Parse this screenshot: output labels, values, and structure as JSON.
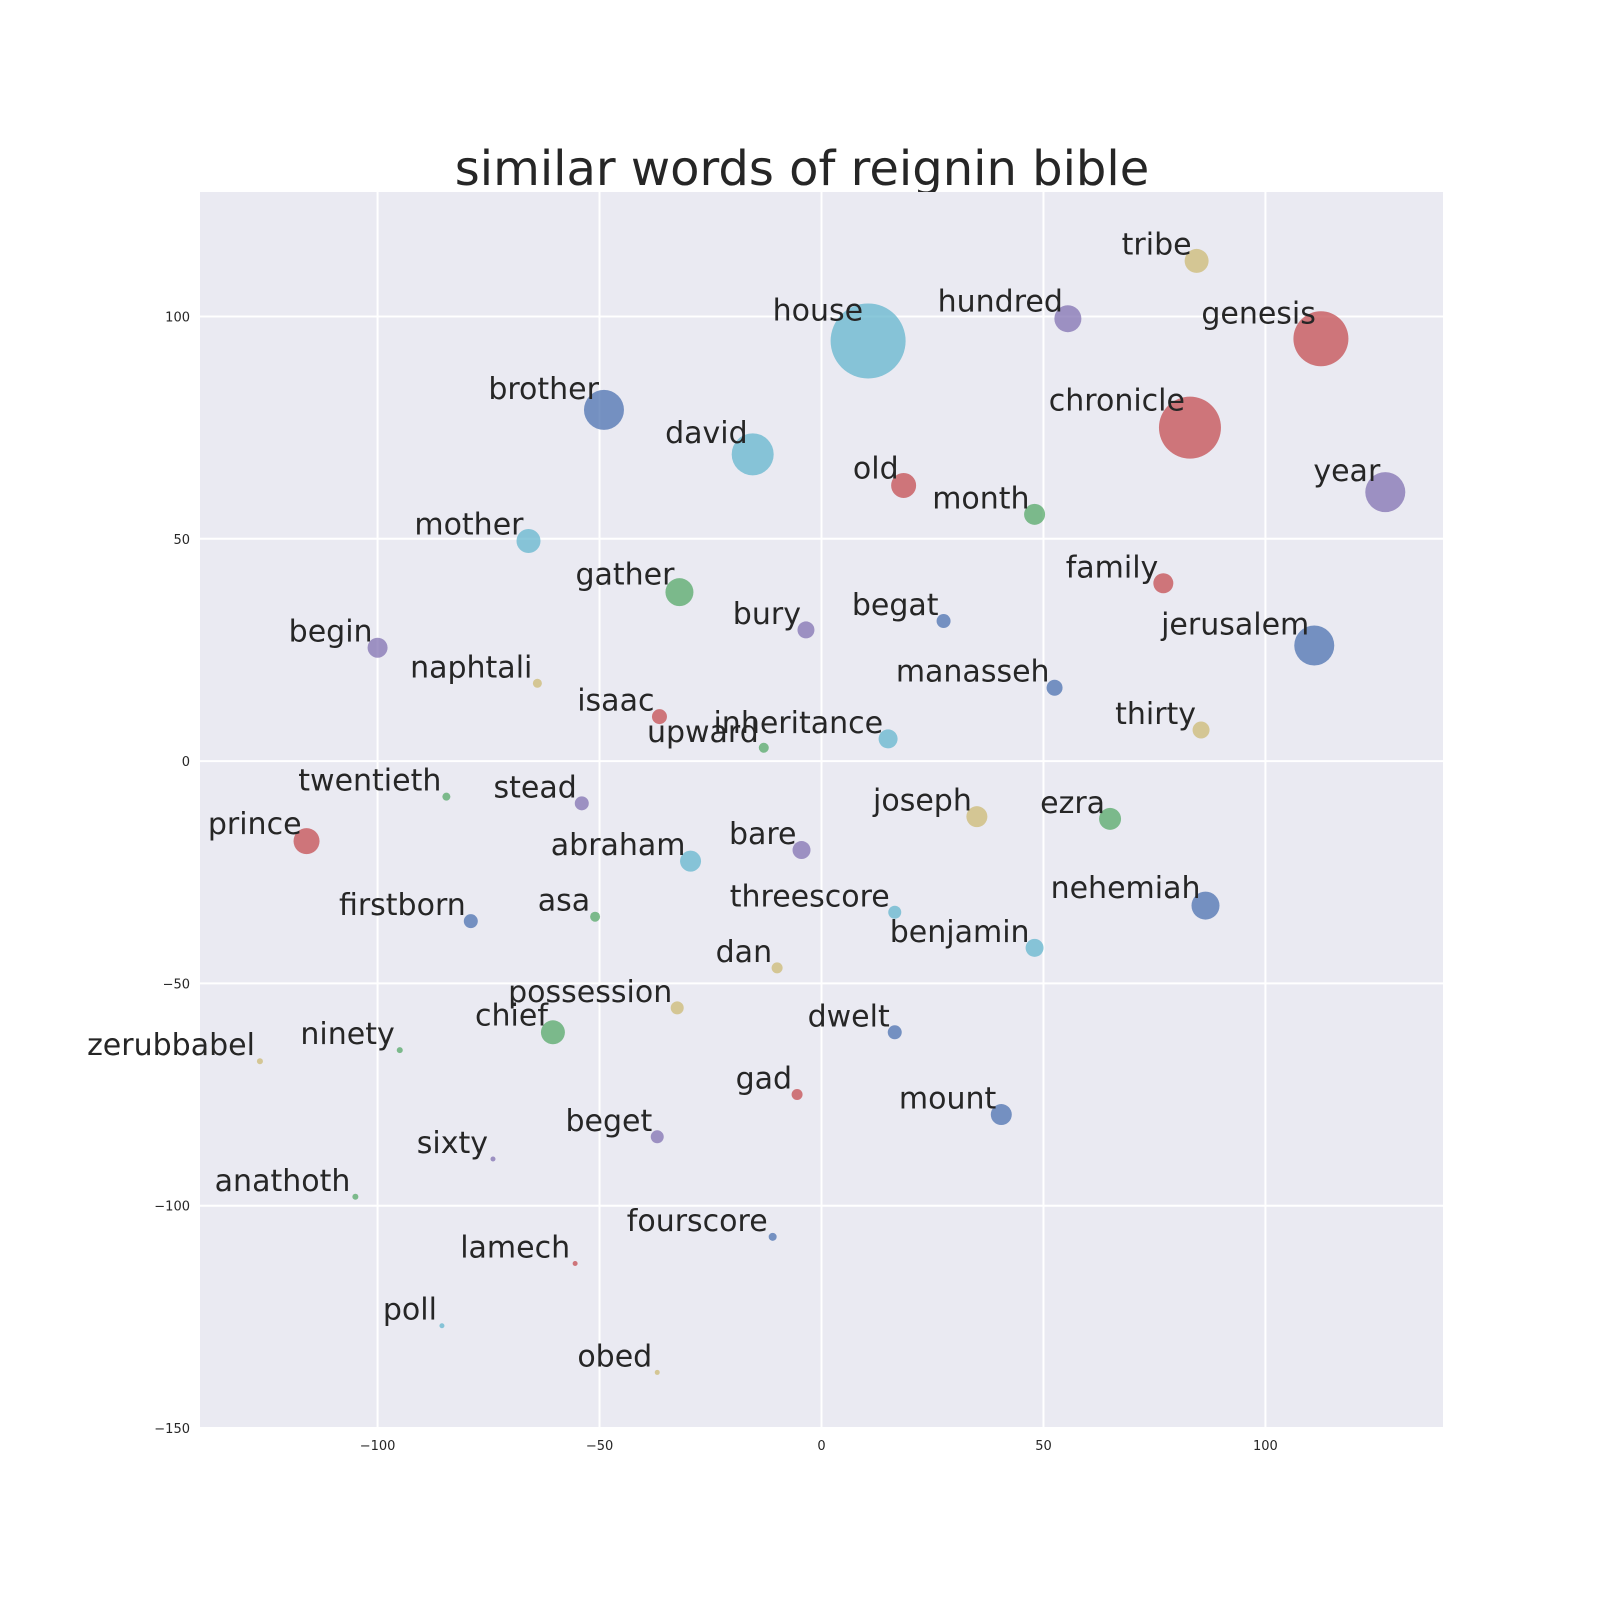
{
  "chart_data": {
    "type": "scatter",
    "title": "similar words of reignin bible",
    "xlabel": "",
    "ylabel": "",
    "xlim": [
      -140,
      140
    ],
    "ylim": [
      -150,
      128
    ],
    "xticks": [
      -100,
      -50,
      0,
      50,
      100
    ],
    "yticks": [
      100,
      50,
      0,
      -50,
      -100,
      -150
    ],
    "xtick_labels": [
      "−100",
      "−50",
      "0",
      "50",
      "100"
    ],
    "ytick_labels": [
      "100",
      "50",
      "0",
      "−50",
      "−100",
      "−150"
    ],
    "grid": true,
    "palette": {
      "blue": "#4c72b0",
      "green": "#55a868",
      "red": "#c44e52",
      "purple": "#8172b2",
      "tan": "#ccb974",
      "cyan": "#64b5cd",
      "background": "#eaeaf2"
    },
    "points": [
      {
        "label": "tribe",
        "x": 84.5,
        "y": 112.5,
        "size": 24,
        "color": "tan"
      },
      {
        "label": "hundred",
        "x": 55.5,
        "y": 99.5,
        "size": 27,
        "color": "purple"
      },
      {
        "label": "house",
        "x": 10.5,
        "y": 94.5,
        "size": 75,
        "color": "cyan"
      },
      {
        "label": "genesis",
        "x": 112.5,
        "y": 95,
        "size": 55,
        "color": "red"
      },
      {
        "label": "brother",
        "x": -49,
        "y": 79,
        "size": 40,
        "color": "blue"
      },
      {
        "label": "chronicle",
        "x": 83,
        "y": 75,
        "size": 62,
        "color": "red"
      },
      {
        "label": "david",
        "x": -15.5,
        "y": 69,
        "size": 42,
        "color": "cyan"
      },
      {
        "label": "old",
        "x": 18.5,
        "y": 62,
        "size": 25,
        "color": "red"
      },
      {
        "label": "year",
        "x": 127,
        "y": 60.5,
        "size": 40,
        "color": "purple"
      },
      {
        "label": "month",
        "x": 48,
        "y": 55.5,
        "size": 21,
        "color": "green"
      },
      {
        "label": "mother",
        "x": -66,
        "y": 49.5,
        "size": 24,
        "color": "cyan"
      },
      {
        "label": "family",
        "x": 77,
        "y": 40,
        "size": 20,
        "color": "red"
      },
      {
        "label": "gather",
        "x": -32,
        "y": 38,
        "size": 28,
        "color": "green"
      },
      {
        "label": "bury",
        "x": -3.5,
        "y": 29.5,
        "size": 17,
        "color": "purple"
      },
      {
        "label": "begat",
        "x": 27.5,
        "y": 31.5,
        "size": 14,
        "color": "blue"
      },
      {
        "label": "begin",
        "x": -100,
        "y": 25.5,
        "size": 20,
        "color": "purple"
      },
      {
        "label": "jerusalem",
        "x": 111,
        "y": 26,
        "size": 40,
        "color": "blue"
      },
      {
        "label": "naphtali",
        "x": -64,
        "y": 17.5,
        "size": 9,
        "color": "tan"
      },
      {
        "label": "manasseh",
        "x": 52.5,
        "y": 16.5,
        "size": 16,
        "color": "blue"
      },
      {
        "label": "isaac",
        "x": -36.5,
        "y": 10,
        "size": 15,
        "color": "red"
      },
      {
        "label": "thirty",
        "x": 85.5,
        "y": 7,
        "size": 17,
        "color": "tan"
      },
      {
        "label": "inheritance",
        "x": 15,
        "y": 5,
        "size": 19,
        "color": "cyan"
      },
      {
        "label": "upward",
        "x": -13,
        "y": 3,
        "size": 10,
        "color": "green"
      },
      {
        "label": "twentieth",
        "x": -84.5,
        "y": -8,
        "size": 8,
        "color": "green"
      },
      {
        "label": "stead",
        "x": -54,
        "y": -9.5,
        "size": 14,
        "color": "purple"
      },
      {
        "label": "joseph",
        "x": 35,
        "y": -12.5,
        "size": 21,
        "color": "tan"
      },
      {
        "label": "ezra",
        "x": 65,
        "y": -13,
        "size": 22,
        "color": "green"
      },
      {
        "label": "prince",
        "x": -116,
        "y": -18,
        "size": 26,
        "color": "red"
      },
      {
        "label": "bare",
        "x": -4.5,
        "y": -20,
        "size": 18,
        "color": "purple"
      },
      {
        "label": "abraham",
        "x": -29.5,
        "y": -22.5,
        "size": 21,
        "color": "cyan"
      },
      {
        "label": "threescore",
        "x": 16.5,
        "y": -34,
        "size": 13,
        "color": "cyan"
      },
      {
        "label": "nehemiah",
        "x": 86.5,
        "y": -32.5,
        "size": 28,
        "color": "blue"
      },
      {
        "label": "firstborn",
        "x": -79,
        "y": -36,
        "size": 14,
        "color": "blue"
      },
      {
        "label": "asa",
        "x": -51,
        "y": -35,
        "size": 10,
        "color": "green"
      },
      {
        "label": "benjamin",
        "x": 48,
        "y": -42,
        "size": 18,
        "color": "cyan"
      },
      {
        "label": "dan",
        "x": -10,
        "y": -46.5,
        "size": 11,
        "color": "tan"
      },
      {
        "label": "possession",
        "x": -32.5,
        "y": -55.5,
        "size": 13,
        "color": "tan"
      },
      {
        "label": "chief",
        "x": -60.5,
        "y": -61,
        "size": 24,
        "color": "green"
      },
      {
        "label": "dwelt",
        "x": 16.5,
        "y": -61,
        "size": 14,
        "color": "blue"
      },
      {
        "label": "zerubbabel",
        "x": -126.5,
        "y": -67.5,
        "size": 6,
        "color": "tan"
      },
      {
        "label": "ninety",
        "x": -95,
        "y": -65,
        "size": 6,
        "color": "green"
      },
      {
        "label": "gad",
        "x": -5.5,
        "y": -75,
        "size": 11,
        "color": "red"
      },
      {
        "label": "mount",
        "x": 40.5,
        "y": -79.5,
        "size": 21,
        "color": "blue"
      },
      {
        "label": "beget",
        "x": -37,
        "y": -84.5,
        "size": 13,
        "color": "purple"
      },
      {
        "label": "sixty",
        "x": -74,
        "y": -89.5,
        "size": 5,
        "color": "purple"
      },
      {
        "label": "anathoth",
        "x": -105,
        "y": -98,
        "size": 6,
        "color": "green"
      },
      {
        "label": "fourscore",
        "x": -11,
        "y": -107,
        "size": 8,
        "color": "blue"
      },
      {
        "label": "lamech",
        "x": -55.5,
        "y": -113,
        "size": 5,
        "color": "red"
      },
      {
        "label": "poll",
        "x": -85.5,
        "y": -127,
        "size": 5,
        "color": "cyan"
      },
      {
        "label": "obed",
        "x": -37,
        "y": -137.5,
        "size": 5,
        "color": "tan"
      }
    ]
  }
}
